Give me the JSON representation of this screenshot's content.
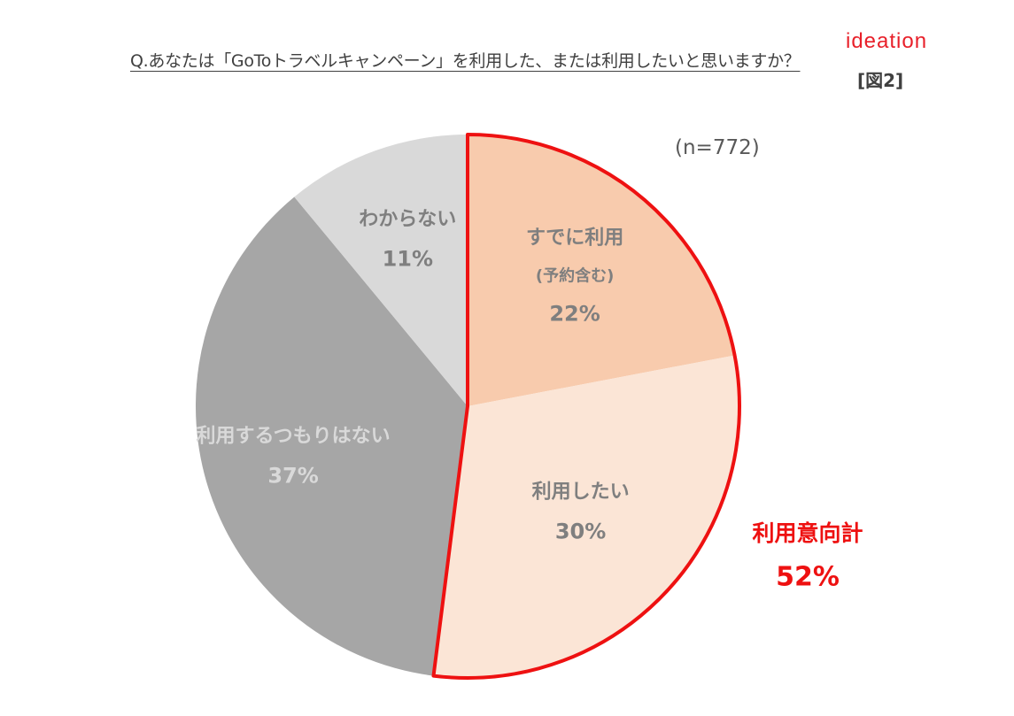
{
  "header": {
    "question": "Q.あなたは「GoToトラベルキャンペーン」を利用した、または利用したいと思いますか？",
    "logo_text": "ideation",
    "figure_label": "[図2]"
  },
  "sample_size": "(n=772)",
  "colors": {
    "already_used": "#f8cbad",
    "want_to_use": "#fbe5d6",
    "not_planning": "#a6a6a6",
    "dont_know": "#d9d9d9",
    "highlight": "#ee1111",
    "label_dark": "#7f7f7f",
    "label_light": "#d9d9d9"
  },
  "chart_data": {
    "type": "pie",
    "title": "Q.あなたは「GoToトラベルキャンペーン」を利用した、または利用したいと思いますか？",
    "slices": [
      {
        "label": "すでに利用",
        "sublabel": "(予約含む)",
        "value": 22,
        "value_label": "22%",
        "color": "#f8cbad"
      },
      {
        "label": "利用したい",
        "sublabel": "",
        "value": 30,
        "value_label": "30%",
        "color": "#fbe5d6"
      },
      {
        "label": "利用するつもりはない",
        "sublabel": "",
        "value": 37,
        "value_label": "37%",
        "color": "#a6a6a6"
      },
      {
        "label": "わからない",
        "sublabel": "",
        "value": 11,
        "value_label": "11%",
        "color": "#d9d9d9"
      }
    ],
    "highlight_group": {
      "label": "利用意向計",
      "value": 52,
      "value_label": "52%",
      "members": [
        "すでに利用",
        "利用したい"
      ]
    },
    "start_angle_deg": 0,
    "direction": "clockwise"
  }
}
